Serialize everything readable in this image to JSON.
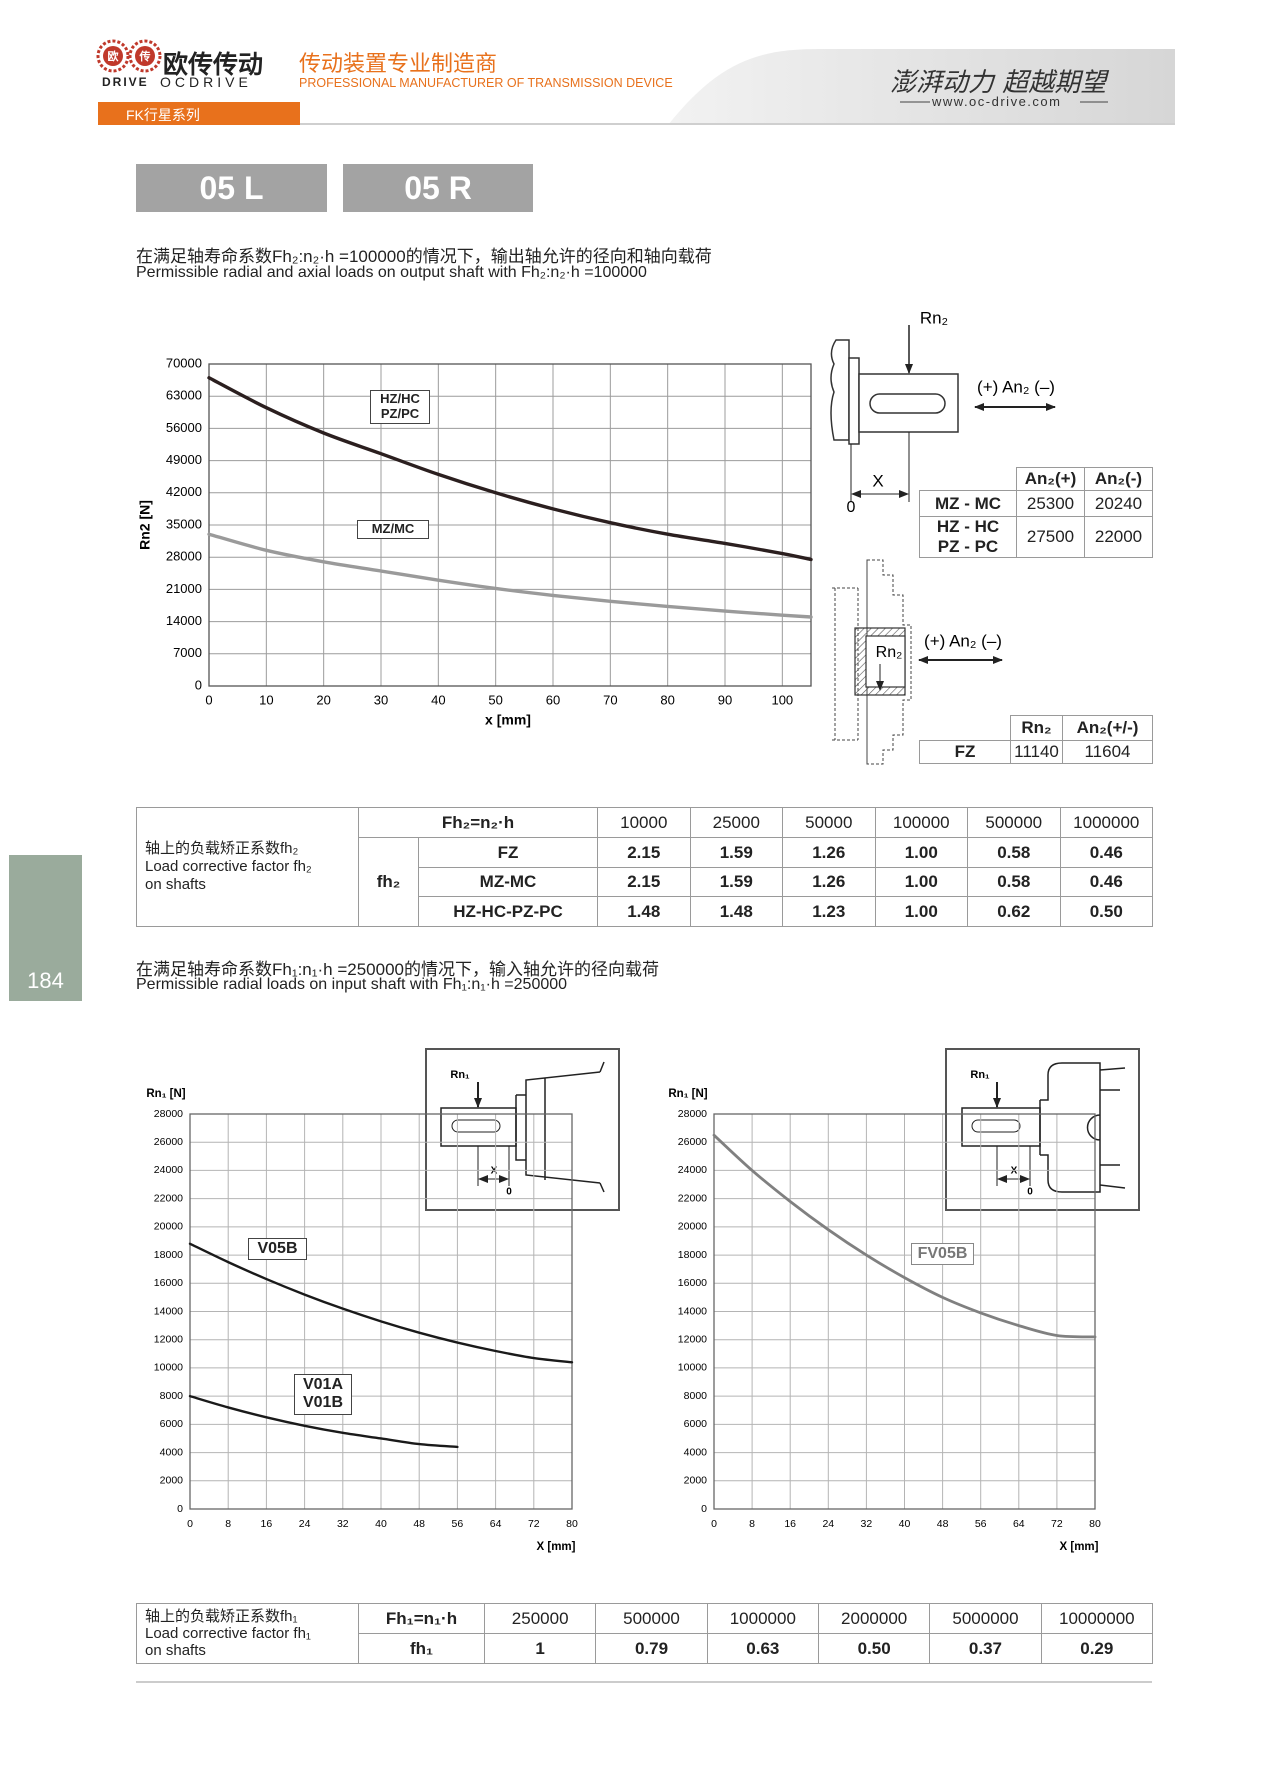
{
  "header": {
    "logo_marks": [
      "欧",
      "传"
    ],
    "brand_cn": "欧传传动",
    "brand_en_left": "DRIVE",
    "brand_en_right": "OCDRIVE",
    "tagline_cn": "传动装置专业制造商",
    "tagline_en": "PROFESSIONAL MANUFACTURER OF TRANSMISSION DEVICE",
    "slogan": "澎湃动力 超越期望",
    "website": "www.oc-drive.com",
    "series": "FK行星系列"
  },
  "page_number": "184",
  "models": [
    "05 L",
    "05 R"
  ],
  "output_section": {
    "caption_cn": "在满足轴寿命系数Fh₂:n₂·h =100000的情况下，输出轴允许的径向和轴向载荷",
    "caption_en": "Permissible radial and axial loads on output shaft with Fh₂:n₂·h =100000"
  },
  "output_shaft_diagram": {
    "radial": "Rn₂",
    "axial": "(+) An₂ (–)",
    "x": "X",
    "zero": "0"
  },
  "axial_table": {
    "header": [
      "An₂(+)",
      "An₂(-)"
    ],
    "rows": [
      {
        "label": [
          "MZ - MC"
        ],
        "values": [
          25300,
          20240
        ]
      },
      {
        "label": [
          "HZ - HC",
          "PZ - PC"
        ],
        "values": [
          27500,
          22000
        ]
      }
    ]
  },
  "fz_diagram": {
    "radial": "Rn₂",
    "axial": "(+) An₂ (–)"
  },
  "fz_table": {
    "header": [
      "Rn₂",
      "An₂(+/-)"
    ],
    "label": "FZ",
    "values": [
      11140,
      11604
    ]
  },
  "fh2_table": {
    "label_cn": "轴上的负载矫正系数fh₂",
    "label_en": [
      "Load corrective factor fh₂",
      "on shafts"
    ],
    "header": "Fh₂=n₂·h",
    "columns": [
      10000,
      25000,
      50000,
      100000,
      500000,
      1000000
    ],
    "factor": "fh₂",
    "rows": [
      {
        "label": "FZ",
        "values": [
          "2.15",
          "1.59",
          "1.26",
          "1.00",
          "0.58",
          "0.46"
        ]
      },
      {
        "label": "MZ-MC",
        "values": [
          "2.15",
          "1.59",
          "1.26",
          "1.00",
          "0.58",
          "0.46"
        ]
      },
      {
        "label": "HZ-HC-PZ-PC",
        "values": [
          "1.48",
          "1.48",
          "1.23",
          "1.00",
          "0.62",
          "0.50"
        ]
      }
    ]
  },
  "input_section": {
    "caption_cn": "在满足轴寿命系数Fh₁:n₁·h =250000的情况下，输入轴允许的径向载荷",
    "caption_en": "Permissible radial loads on input shaft with Fh₁:n₁·h =250000"
  },
  "input_diagrams": [
    {
      "radial": "Rn₁",
      "x": "X",
      "zero": "0"
    },
    {
      "radial": "Rn₁",
      "x": "X",
      "zero": "0"
    }
  ],
  "fh1_table": {
    "label_cn": "轴上的负载矫正系数fh₁",
    "label_en": [
      "Load corrective factor fh₁",
      "on shafts"
    ],
    "header": "Fh₁=n₁·h",
    "columns": [
      250000,
      500000,
      1000000,
      2000000,
      5000000,
      10000000
    ],
    "factor": "fh₁",
    "values": [
      "1",
      "0.79",
      "0.63",
      "0.50",
      "0.37",
      "0.29"
    ]
  },
  "chart_data": [
    {
      "type": "line",
      "y_label": "Rn2 [N]",
      "x_label": "x [mm]",
      "x": [
        0,
        10,
        20,
        30,
        40,
        50,
        60,
        70,
        80,
        90,
        100,
        105
      ],
      "xlim": [
        0,
        105
      ],
      "xticks": [
        0,
        10,
        20,
        30,
        40,
        50,
        60,
        70,
        80,
        90,
        100
      ],
      "ylim": [
        0,
        70000
      ],
      "yticks": [
        0,
        7000,
        14000,
        21000,
        28000,
        35000,
        42000,
        49000,
        56000,
        63000,
        70000
      ],
      "grid": true,
      "series": [
        {
          "name": "HZ/HC PZ/PC",
          "color": "#2b1f1f",
          "values": [
            67000,
            60500,
            55000,
            50500,
            46000,
            42000,
            38500,
            35500,
            33000,
            31000,
            28800,
            27500
          ]
        },
        {
          "name": "MZ/MC",
          "color": "#9a9a9a",
          "values": [
            33000,
            29500,
            27000,
            25000,
            23000,
            21200,
            19700,
            18400,
            17300,
            16300,
            15400,
            15000
          ]
        }
      ]
    },
    {
      "type": "line",
      "y_label": "Rn₁ [N]",
      "x_label": "X [mm]",
      "x": [
        0,
        8,
        16,
        24,
        32,
        40,
        48,
        56,
        64,
        72,
        80
      ],
      "xlim": [
        0,
        80
      ],
      "xticks": [
        0,
        8,
        16,
        24,
        32,
        40,
        48,
        56,
        64,
        72,
        80
      ],
      "ylim": [
        0,
        28000
      ],
      "yticks": [
        0,
        2000,
        4000,
        6000,
        8000,
        10000,
        12000,
        14000,
        16000,
        18000,
        20000,
        22000,
        24000,
        26000,
        28000
      ],
      "grid": true,
      "series": [
        {
          "name": "V05B",
          "color": "#1a1a1a",
          "values": [
            18800,
            17500,
            16300,
            15200,
            14200,
            13300,
            12500,
            11800,
            11200,
            10700,
            10400
          ]
        },
        {
          "name": "V01A V01B",
          "color": "#1a1a1a",
          "values": [
            8000,
            7200,
            6500,
            5900,
            5400,
            5000,
            4600,
            4400,
            null,
            null,
            null
          ]
        }
      ]
    },
    {
      "type": "line",
      "y_label": "Rn₁ [N]",
      "x_label": "X [mm]",
      "x": [
        0,
        8,
        16,
        24,
        32,
        40,
        48,
        56,
        64,
        72,
        80
      ],
      "xlim": [
        0,
        80
      ],
      "xticks": [
        0,
        8,
        16,
        24,
        32,
        40,
        48,
        56,
        64,
        72,
        80
      ],
      "ylim": [
        0,
        28000
      ],
      "yticks": [
        0,
        2000,
        4000,
        6000,
        8000,
        10000,
        12000,
        14000,
        16000,
        18000,
        20000,
        22000,
        24000,
        26000,
        28000
      ],
      "grid": true,
      "series": [
        {
          "name": "FV05B",
          "color": "#808080",
          "values": [
            26500,
            24000,
            21800,
            19800,
            18000,
            16400,
            15000,
            13900,
            13000,
            12300,
            12200
          ]
        }
      ]
    }
  ]
}
